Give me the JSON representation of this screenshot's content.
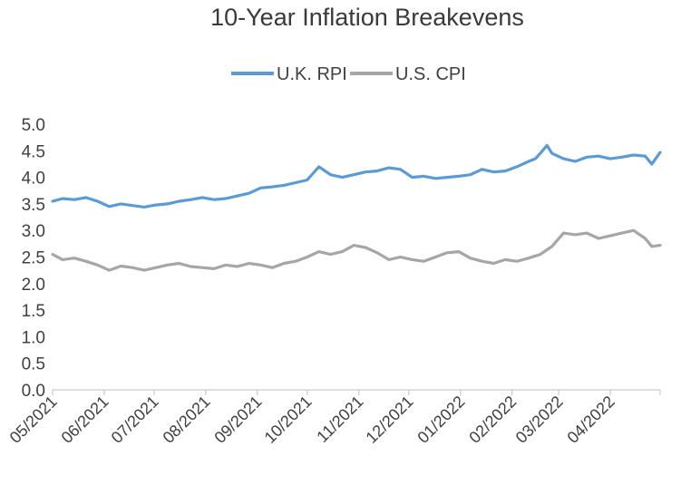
{
  "chart_data": {
    "type": "line",
    "title": "10-Year Inflation Breakevens",
    "xlabel": "",
    "ylabel": "",
    "ylim": [
      0,
      5
    ],
    "yticks": [
      "0.0",
      "0.5",
      "1.0",
      "1.5",
      "2.0",
      "2.5",
      "3.0",
      "3.5",
      "4.0",
      "4.5",
      "5.0"
    ],
    "xlim": [
      "2021-05-01",
      "2022-05-01"
    ],
    "xtick_labels": [
      "05/2021",
      "06/2021",
      "07/2021",
      "08/2021",
      "09/2021",
      "10/2021",
      "11/2021",
      "12/2021",
      "01/2022",
      "02/2022",
      "03/2022",
      "04/2022"
    ],
    "xtick_dates": [
      "2021-05-01",
      "2021-06-01",
      "2021-07-01",
      "2021-08-01",
      "2021-09-01",
      "2021-10-01",
      "2021-11-01",
      "2021-12-01",
      "2022-01-01",
      "2022-02-01",
      "2022-03-01",
      "2022-04-01"
    ],
    "grid": false,
    "legend_position": "top-center",
    "series": [
      {
        "name": "U.K. RPI",
        "color": "#5b9bd5",
        "x": [
          "2021-05-01",
          "2021-05-07",
          "2021-05-14",
          "2021-05-21",
          "2021-05-28",
          "2021-06-04",
          "2021-06-11",
          "2021-06-18",
          "2021-06-25",
          "2021-07-02",
          "2021-07-09",
          "2021-07-16",
          "2021-07-23",
          "2021-07-30",
          "2021-08-06",
          "2021-08-13",
          "2021-08-20",
          "2021-08-27",
          "2021-09-03",
          "2021-09-10",
          "2021-09-17",
          "2021-09-24",
          "2021-10-01",
          "2021-10-08",
          "2021-10-15",
          "2021-10-22",
          "2021-10-29",
          "2021-11-05",
          "2021-11-12",
          "2021-11-19",
          "2021-11-26",
          "2021-12-03",
          "2021-12-10",
          "2021-12-17",
          "2021-12-24",
          "2021-12-31",
          "2022-01-07",
          "2022-01-14",
          "2022-01-21",
          "2022-01-28",
          "2022-02-04",
          "2022-02-11",
          "2022-02-15",
          "2022-02-18",
          "2022-02-22",
          "2022-02-25",
          "2022-03-04",
          "2022-03-11",
          "2022-03-18",
          "2022-03-25",
          "2022-04-01",
          "2022-04-08",
          "2022-04-15",
          "2022-04-22",
          "2022-04-26",
          "2022-05-01"
        ],
        "values": [
          3.55,
          3.6,
          3.58,
          3.62,
          3.55,
          3.45,
          3.5,
          3.47,
          3.44,
          3.48,
          3.5,
          3.55,
          3.58,
          3.62,
          3.58,
          3.6,
          3.65,
          3.7,
          3.8,
          3.82,
          3.85,
          3.9,
          3.95,
          4.2,
          4.05,
          4.0,
          4.05,
          4.1,
          4.12,
          4.18,
          4.15,
          4.0,
          4.02,
          3.98,
          4.0,
          4.02,
          4.05,
          4.15,
          4.1,
          4.12,
          4.2,
          4.3,
          4.35,
          4.45,
          4.6,
          4.45,
          4.35,
          4.3,
          4.38,
          4.4,
          4.35,
          4.38,
          4.42,
          4.4,
          4.25,
          4.47
        ]
      },
      {
        "name": "U.S. CPI",
        "color": "#a6a6a6",
        "x": [
          "2021-05-01",
          "2021-05-07",
          "2021-05-14",
          "2021-05-21",
          "2021-05-28",
          "2021-06-04",
          "2021-06-11",
          "2021-06-18",
          "2021-06-25",
          "2021-07-02",
          "2021-07-09",
          "2021-07-16",
          "2021-07-23",
          "2021-07-30",
          "2021-08-06",
          "2021-08-13",
          "2021-08-20",
          "2021-08-27",
          "2021-09-03",
          "2021-09-10",
          "2021-09-17",
          "2021-09-24",
          "2021-10-01",
          "2021-10-08",
          "2021-10-15",
          "2021-10-22",
          "2021-10-29",
          "2021-11-05",
          "2021-11-12",
          "2021-11-19",
          "2021-11-26",
          "2021-12-03",
          "2021-12-10",
          "2021-12-17",
          "2021-12-24",
          "2021-12-31",
          "2022-01-07",
          "2022-01-14",
          "2022-01-21",
          "2022-01-28",
          "2022-02-04",
          "2022-02-11",
          "2022-02-18",
          "2022-02-25",
          "2022-03-04",
          "2022-03-11",
          "2022-03-18",
          "2022-03-25",
          "2022-04-01",
          "2022-04-08",
          "2022-04-15",
          "2022-04-22",
          "2022-04-26",
          "2022-05-01"
        ],
        "values": [
          2.55,
          2.45,
          2.48,
          2.42,
          2.35,
          2.25,
          2.33,
          2.3,
          2.25,
          2.3,
          2.35,
          2.38,
          2.32,
          2.3,
          2.28,
          2.35,
          2.32,
          2.38,
          2.35,
          2.3,
          2.38,
          2.42,
          2.5,
          2.6,
          2.55,
          2.6,
          2.72,
          2.68,
          2.58,
          2.45,
          2.5,
          2.45,
          2.42,
          2.5,
          2.58,
          2.6,
          2.48,
          2.42,
          2.38,
          2.45,
          2.42,
          2.48,
          2.55,
          2.7,
          2.95,
          2.92,
          2.95,
          2.85,
          2.9,
          2.95,
          3.0,
          2.85,
          2.7,
          2.72
        ]
      }
    ]
  }
}
